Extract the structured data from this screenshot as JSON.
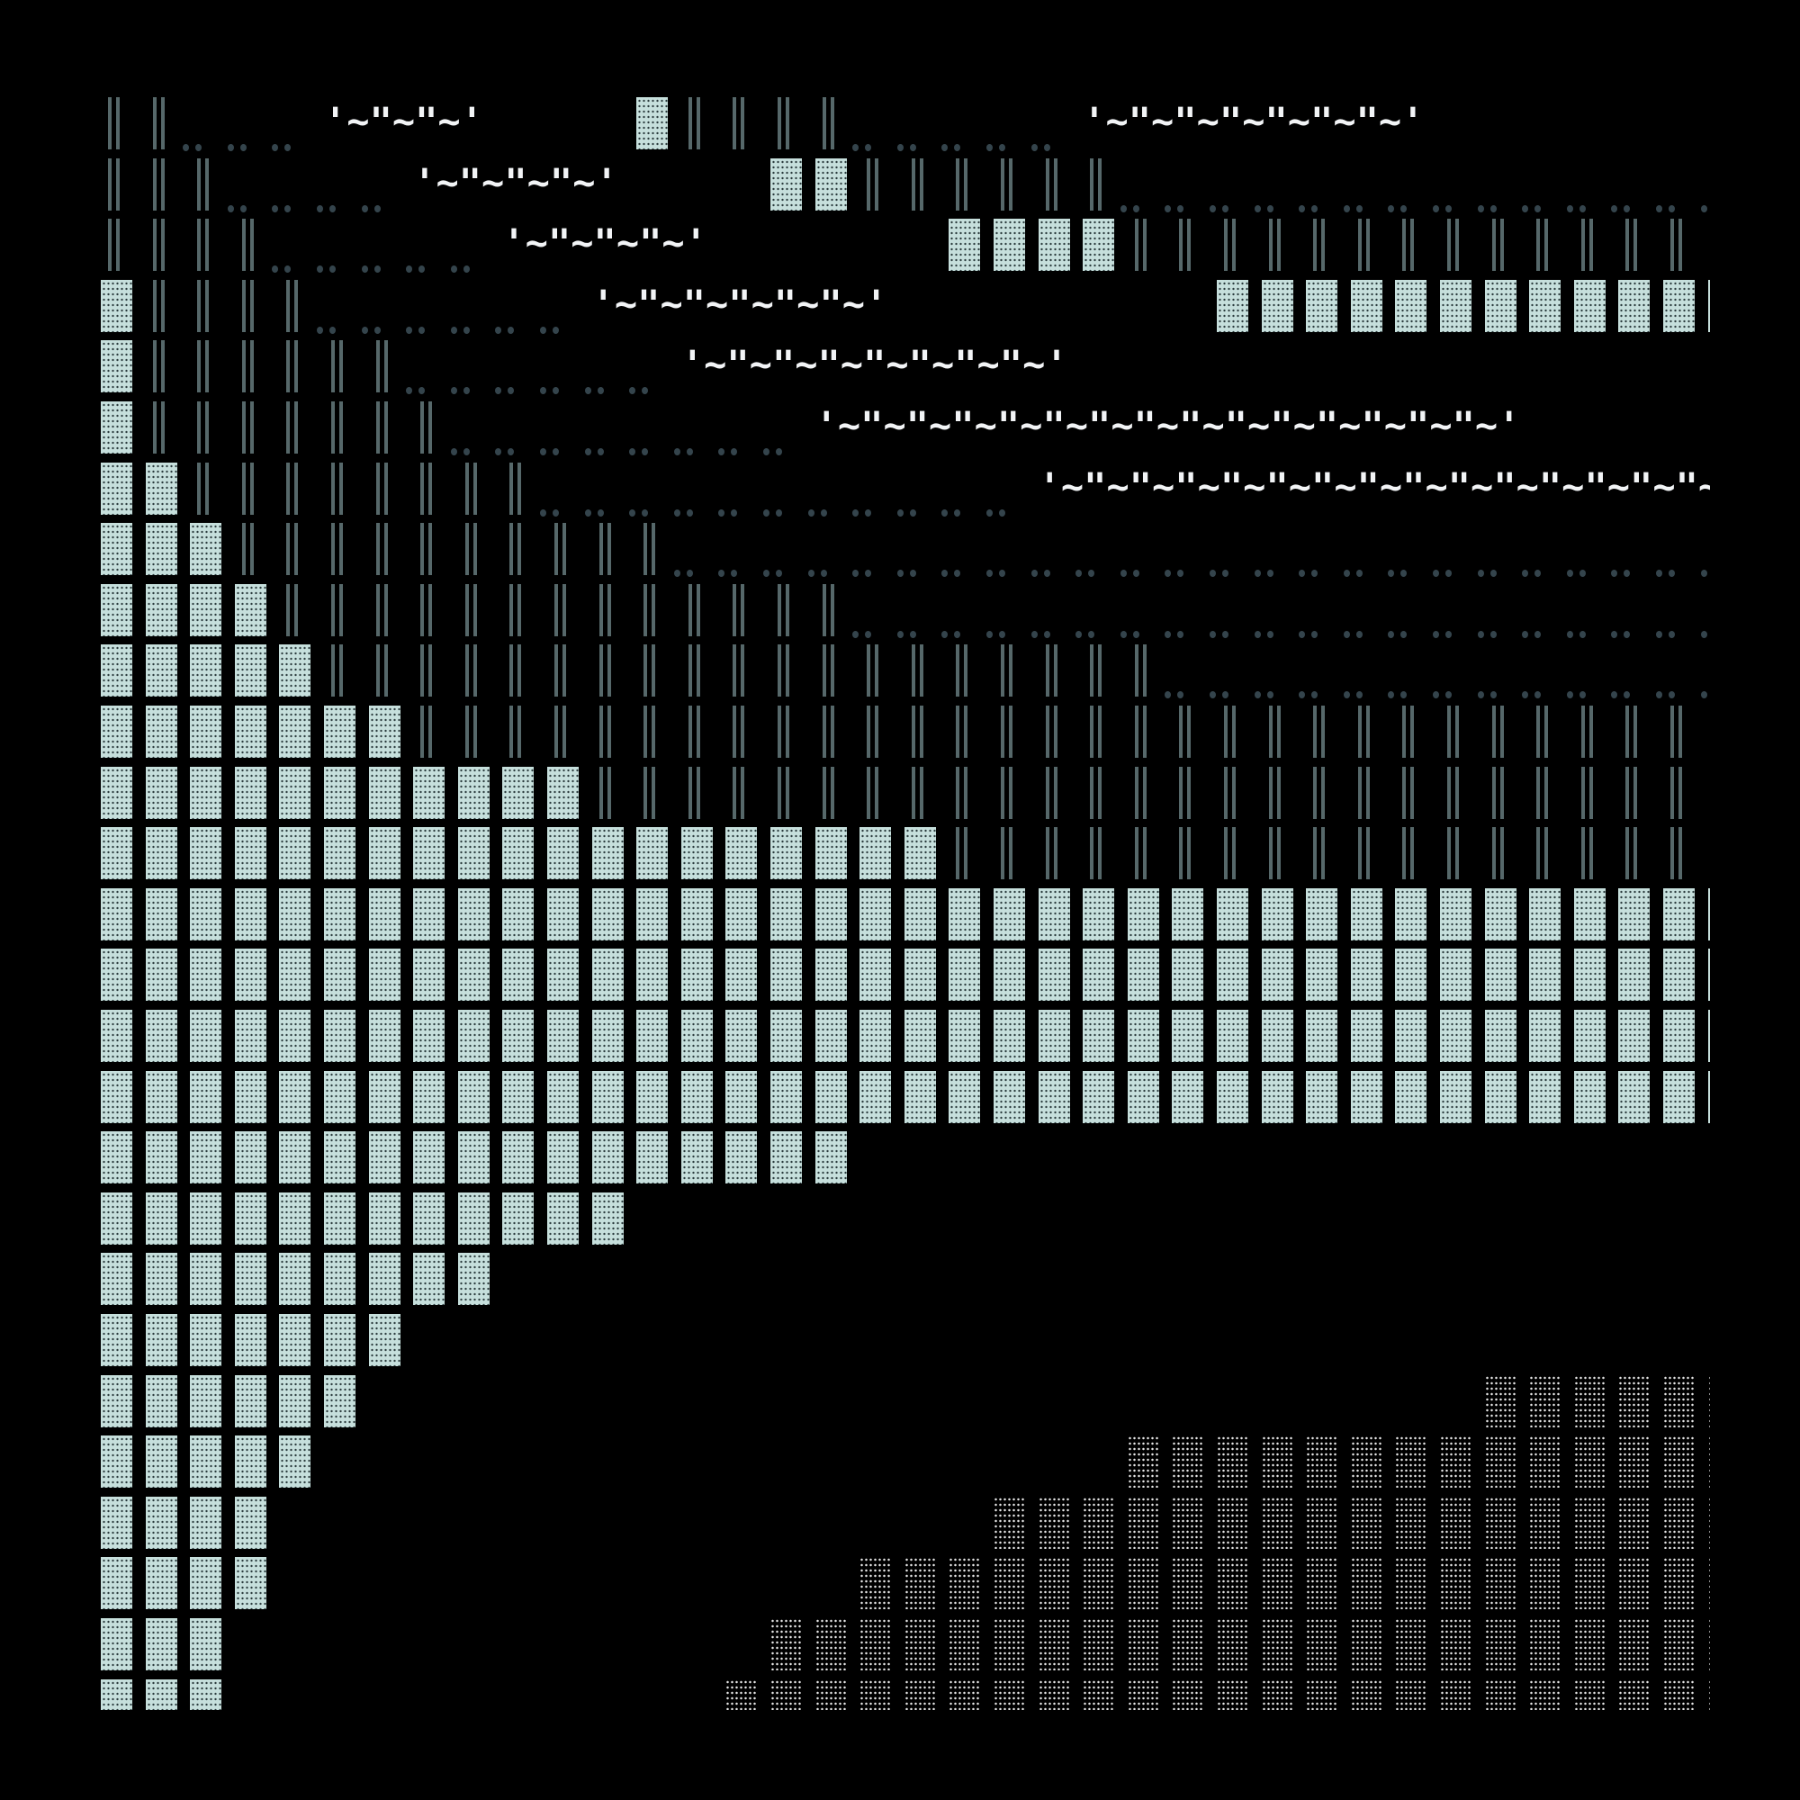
{
  "colors": {
    "background": "#000000",
    "block": "#c6dfdc",
    "bars": "#56686a",
    "dots": "#34444c",
    "gray_dots": "#e8e8e8",
    "label": "#f2f4f6"
  },
  "legend": {
    "B": "block",
    "I": "double-bar",
    ".": "dots",
    "G": "gray-dotted-block",
    "T": "label-cell",
    " ": "empty"
  },
  "rows": [
    {
      "cells": "II...TTTT   BIIII.....TTTTTTT        ",
      "labels": [
        "'~\"~\"~'",
        "'~\"~\"~\"~\"~\"~\"~'"
      ]
    },
    {
      "cells": "III....TTTTT   BBIIIIII..............",
      "labels": [
        "'~\"~\"~\"~'"
      ]
    },
    {
      "cells": "IIII.....TTTTT     BBBBIIIIIIIIIIIII ",
      "labels": [
        "'~\"~\"~\"~'"
      ]
    },
    {
      "cells": "BIIII......TTTTTTT       BBBBBBBBBBBB",
      "labels": [
        "'~\"~\"~\"~\"~\"~'"
      ]
    },
    {
      "cells": "BIIIIII......TTTTTTTT                ",
      "labels": [
        "'~\"~\"~\"~\"~\"~\"~\"~'"
      ]
    },
    {
      "cells": "BIIIIIII........TTTTTTTTTTTTTTT      ",
      "labels": [
        "'~\"~\"~\"~\"~\"~\"~\"~\"~\"~\"~\"~\"~\"~\"~'"
      ]
    },
    {
      "cells": "BBIIIIIIII...........TTTTTTTTTTTTTTTT",
      "labels": [
        "'~\"~\"~\"~\"~\"~\"~\"~\"~\"~\"~\"~\"~\"~\"~\"~'"
      ]
    },
    {
      "cells": "BBBIIIIIIIIII........................",
      "labels": []
    },
    {
      "cells": "BBBBIIIIIIIIIIIII....................",
      "labels": []
    },
    {
      "cells": "BBBBBIIIIIIIIIIIIIIIIIII.............",
      "labels": []
    },
    {
      "cells": "BBBBBBBIIIIIIIIIIIIIIIIIIIIIIIIIIIII ",
      "labels": []
    },
    {
      "cells": "BBBBBBBBBBBIIIIIIIIIIIIIIIIIIIIIIIII ",
      "labels": []
    },
    {
      "cells": "BBBBBBBBBBBBBBBBBBBIIIIIIIIIIIIIIIII ",
      "labels": []
    },
    {
      "cells": "BBBBBBBBBBBBBBBBBBBBBBBBBBBBBBBBBBBBB",
      "labels": []
    },
    {
      "cells": "BBBBBBBBBBBBBBBBBBBBBBBBBBBBBBBBBBBBB",
      "labels": []
    },
    {
      "cells": "BBBBBBBBBBBBBBBBBBBBBBBBBBBBBBBBBBBBB",
      "labels": []
    },
    {
      "cells": "BBBBBBBBBBBBBBBBBBBBBBBBBBBBBBBBBBBBB",
      "labels": []
    },
    {
      "cells": "BBBBBBBBBBBBBBBBB                    ",
      "labels": []
    },
    {
      "cells": "BBBBBBBBBBBB                         ",
      "labels": []
    },
    {
      "cells": "BBBBBBBBB                            ",
      "labels": []
    },
    {
      "cells": "BBBBBBB                              ",
      "labels": []
    },
    {
      "cells": "BBBBBB                         GGGGGG",
      "labels": []
    },
    {
      "cells": "BBBBB                  GGGGGGGGGGGGGG",
      "labels": []
    },
    {
      "cells": "BBBB                GGGGGGGGGGGGGGGGG",
      "labels": []
    },
    {
      "cells": "BBBB             GGGGGGGGGGGGGGGGGGGG",
      "labels": []
    },
    {
      "cells": "BBB            GGGGGGGGGGGGGGGGGGGGGG",
      "labels": []
    },
    {
      "cells": "BBB           GGGGGGGGGGGGGGGGGGGGGGG",
      "labels": []
    }
  ]
}
